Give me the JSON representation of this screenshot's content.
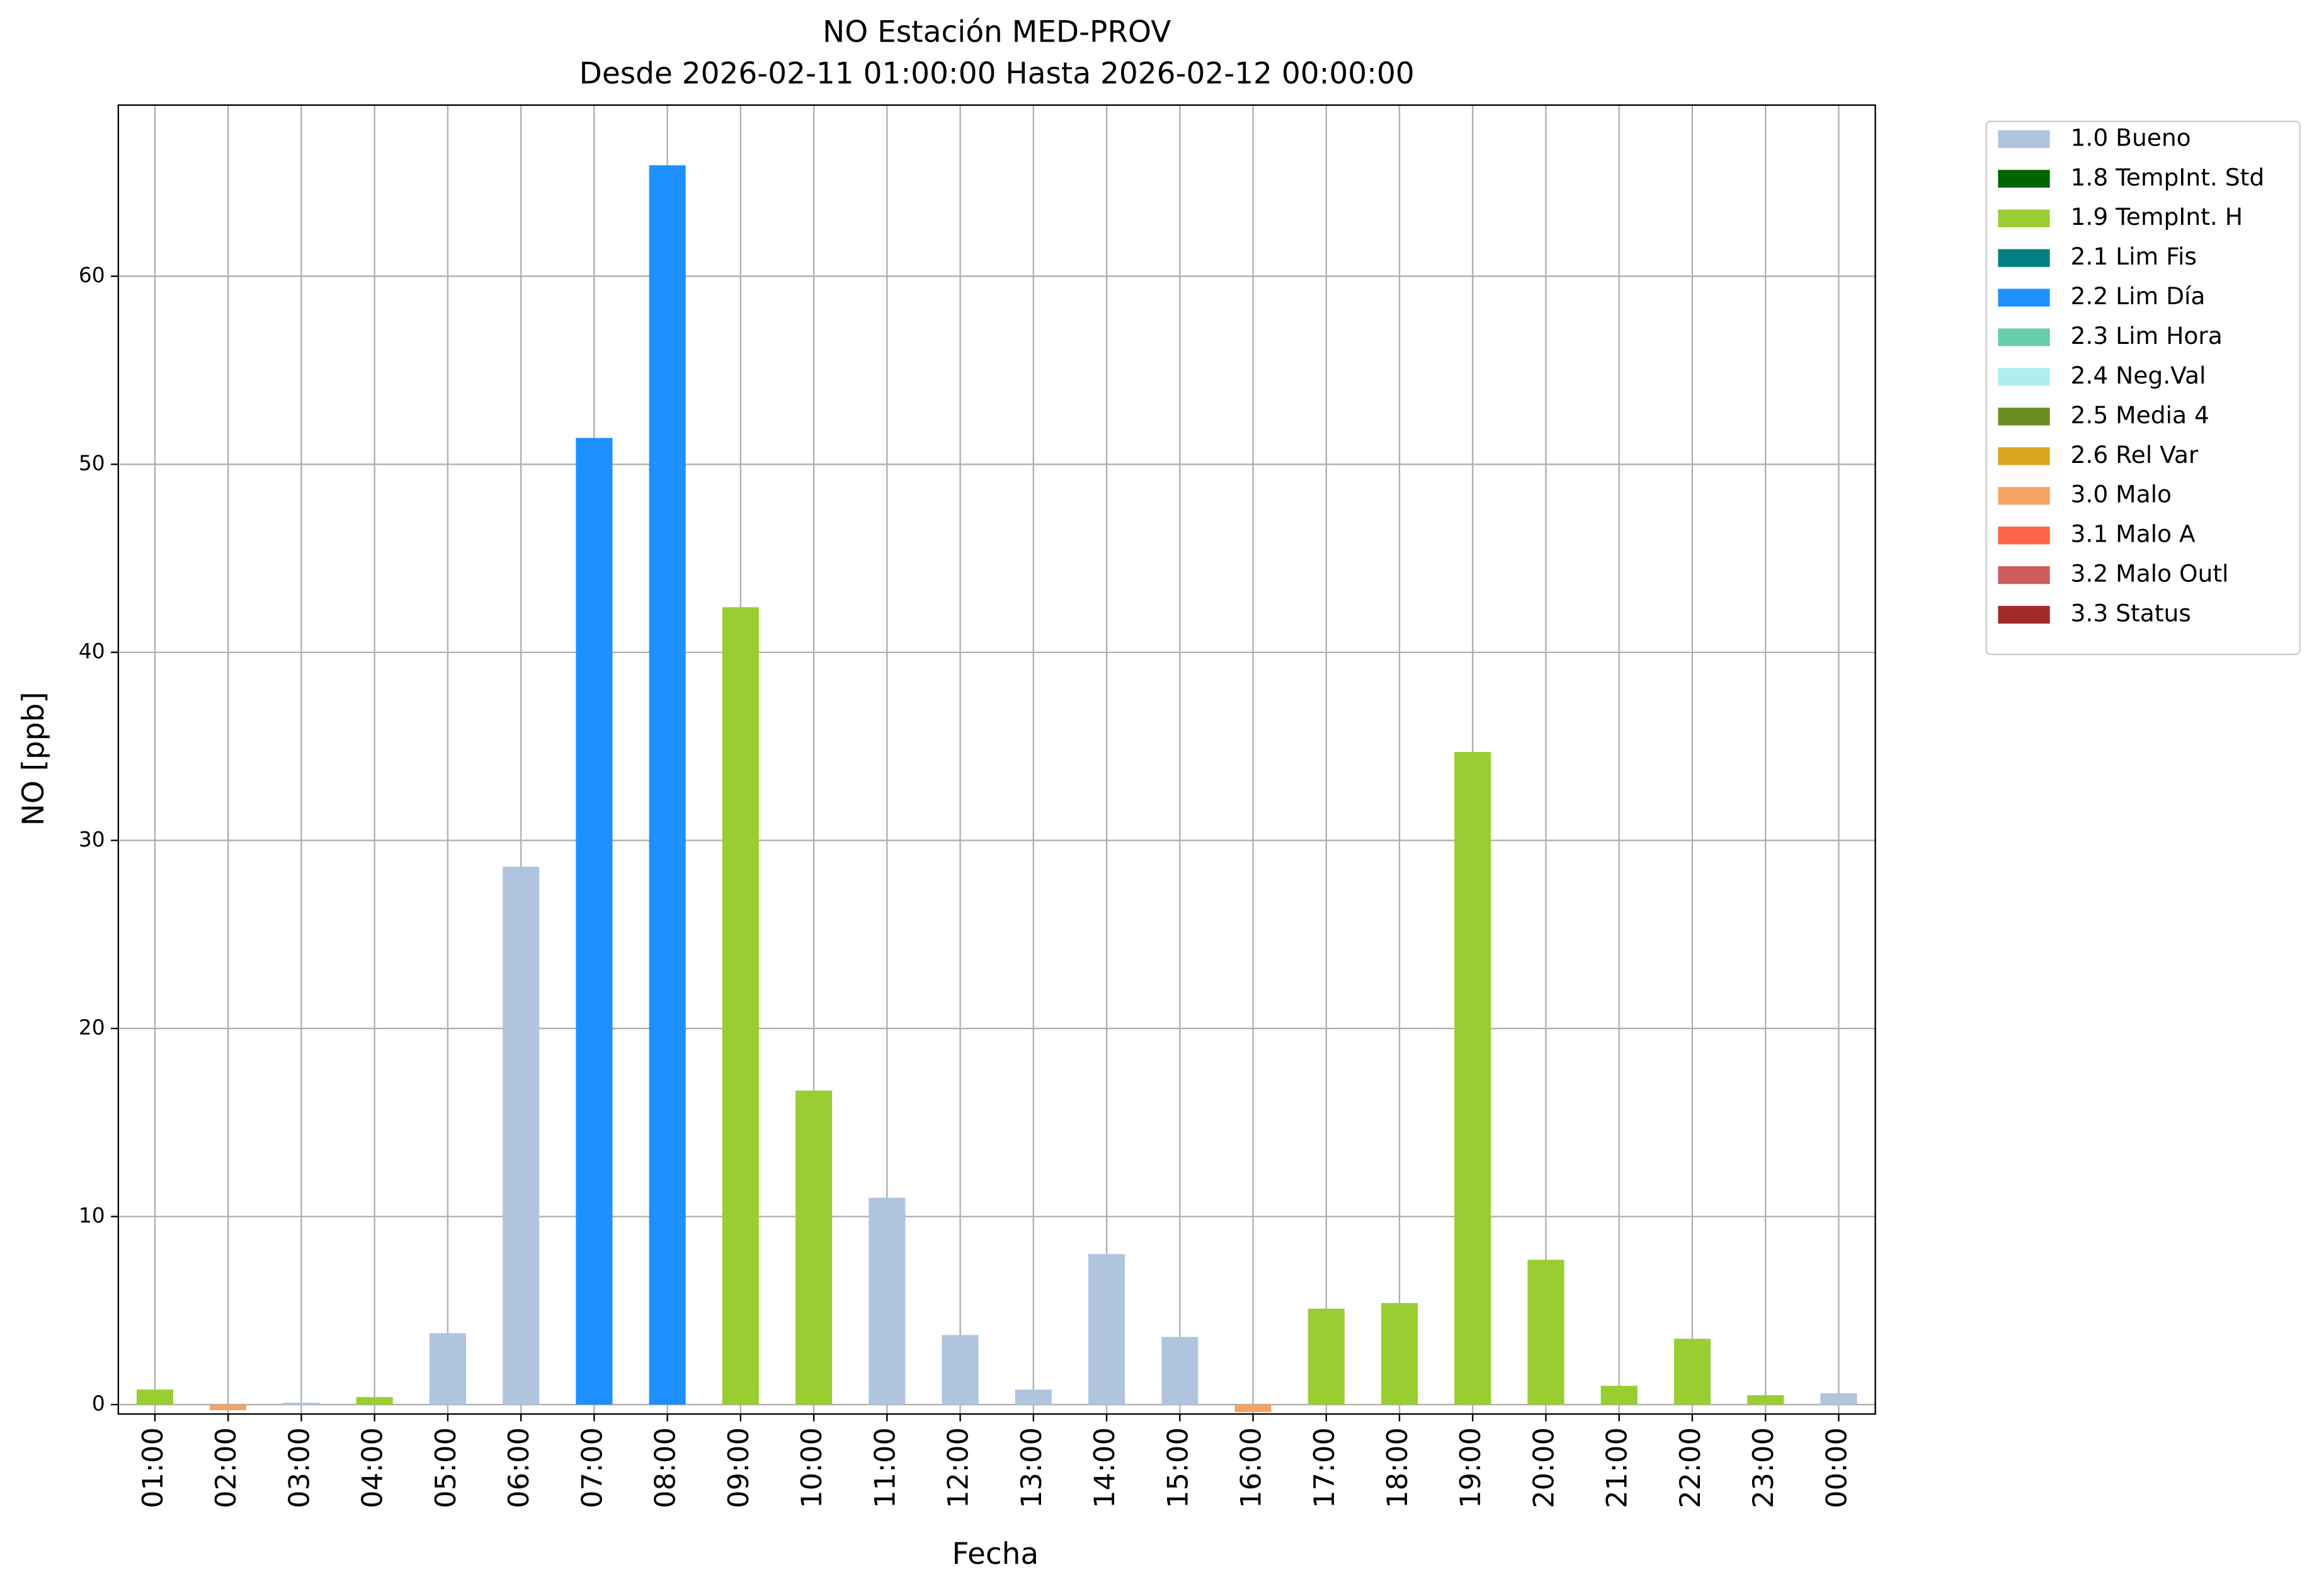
{
  "chart_data": {
    "type": "bar",
    "stacked": true,
    "title": "NO Estación MED-PROV",
    "subtitle": "Desde 2026-02-11 01:00:00 Hasta 2026-02-12 00:00:00",
    "x_label": "Fecha",
    "y_label": "NO [ppb]",
    "categories": [
      "01:00",
      "02:00",
      "03:00",
      "04:00",
      "05:00",
      "06:00",
      "07:00",
      "08:00",
      "09:00",
      "10:00",
      "11:00",
      "12:00",
      "13:00",
      "14:00",
      "15:00",
      "16:00",
      "17:00",
      "18:00",
      "19:00",
      "20:00",
      "21:00",
      "22:00",
      "23:00",
      "00:00"
    ],
    "series": [
      {
        "name": "1.0 Bueno",
        "color": "#b0c4de",
        "values": [
          null,
          null,
          0.1,
          null,
          3.8,
          28.6,
          null,
          null,
          null,
          null,
          11.0,
          3.7,
          0.8,
          8.0,
          3.6,
          null,
          null,
          null,
          null,
          null,
          null,
          null,
          null,
          0.6
        ]
      },
      {
        "name": "1.8 TempInt. Std",
        "color": "#006400",
        "values": [
          null,
          null,
          null,
          null,
          null,
          null,
          null,
          null,
          null,
          null,
          null,
          null,
          null,
          null,
          null,
          null,
          null,
          null,
          null,
          null,
          null,
          null,
          null,
          null
        ]
      },
      {
        "name": "1.9 TempInt. H",
        "color": "#9acd32",
        "values": [
          0.8,
          null,
          null,
          0.4,
          null,
          null,
          null,
          null,
          42.4,
          16.7,
          null,
          null,
          null,
          null,
          null,
          null,
          5.1,
          5.4,
          34.7,
          7.7,
          1.0,
          3.5,
          0.5,
          null
        ]
      },
      {
        "name": "2.1 Lim Fis",
        "color": "#008080",
        "values": [
          null,
          null,
          null,
          null,
          null,
          null,
          null,
          null,
          null,
          null,
          null,
          null,
          null,
          null,
          null,
          null,
          null,
          null,
          null,
          null,
          null,
          null,
          null,
          null
        ]
      },
      {
        "name": "2.2 Lim Día",
        "color": "#1e90ff",
        "values": [
          null,
          null,
          null,
          null,
          null,
          null,
          51.4,
          65.9,
          null,
          null,
          null,
          null,
          null,
          null,
          null,
          null,
          null,
          null,
          null,
          null,
          null,
          null,
          null,
          null
        ]
      },
      {
        "name": "2.3 Lim Hora",
        "color": "#66cdaa",
        "values": [
          null,
          null,
          null,
          null,
          null,
          null,
          null,
          null,
          null,
          null,
          null,
          null,
          null,
          null,
          null,
          null,
          null,
          null,
          null,
          null,
          null,
          null,
          null,
          null
        ]
      },
      {
        "name": "2.4 Neg.Val",
        "color": "#afeeee",
        "values": [
          null,
          null,
          null,
          null,
          null,
          null,
          null,
          null,
          null,
          null,
          null,
          null,
          null,
          null,
          null,
          null,
          null,
          null,
          null,
          null,
          null,
          null,
          null,
          null
        ]
      },
      {
        "name": "2.5 Media 4",
        "color": "#6b8e23",
        "values": [
          null,
          null,
          null,
          null,
          null,
          null,
          null,
          null,
          null,
          null,
          null,
          null,
          null,
          null,
          null,
          null,
          null,
          null,
          null,
          null,
          null,
          null,
          null,
          null
        ]
      },
      {
        "name": "2.6 Rel Var",
        "color": "#daa520",
        "values": [
          null,
          null,
          null,
          null,
          null,
          null,
          null,
          null,
          null,
          null,
          null,
          null,
          null,
          null,
          null,
          null,
          null,
          null,
          null,
          null,
          null,
          null,
          null,
          null
        ]
      },
      {
        "name": "3.0 Malo",
        "color": "#f4a460",
        "values": [
          null,
          -0.3,
          null,
          null,
          null,
          null,
          null,
          null,
          null,
          null,
          null,
          null,
          null,
          null,
          null,
          -0.4,
          null,
          null,
          null,
          null,
          null,
          null,
          null,
          null
        ]
      },
      {
        "name": "3.1 Malo A",
        "color": "#ff6347",
        "values": [
          null,
          null,
          null,
          null,
          null,
          null,
          null,
          null,
          null,
          null,
          null,
          null,
          null,
          null,
          null,
          null,
          null,
          null,
          null,
          null,
          null,
          null,
          null,
          null
        ]
      },
      {
        "name": "3.2 Malo Outl",
        "color": "#cd5c5c",
        "values": [
          null,
          null,
          null,
          null,
          null,
          null,
          null,
          null,
          null,
          null,
          null,
          null,
          null,
          null,
          null,
          null,
          null,
          null,
          null,
          null,
          null,
          null,
          null,
          null
        ]
      },
      {
        "name": "3.3 Status",
        "color": "#a52a2a",
        "values": [
          null,
          null,
          null,
          null,
          null,
          null,
          null,
          null,
          null,
          null,
          null,
          null,
          null,
          null,
          null,
          null,
          null,
          null,
          null,
          null,
          null,
          null,
          null,
          null
        ]
      }
    ],
    "ylim": [
      -0.5,
      69.1
    ],
    "yticks": [
      0,
      10,
      20,
      30,
      40,
      50,
      60
    ],
    "grid": true,
    "legend": "outside-right"
  }
}
